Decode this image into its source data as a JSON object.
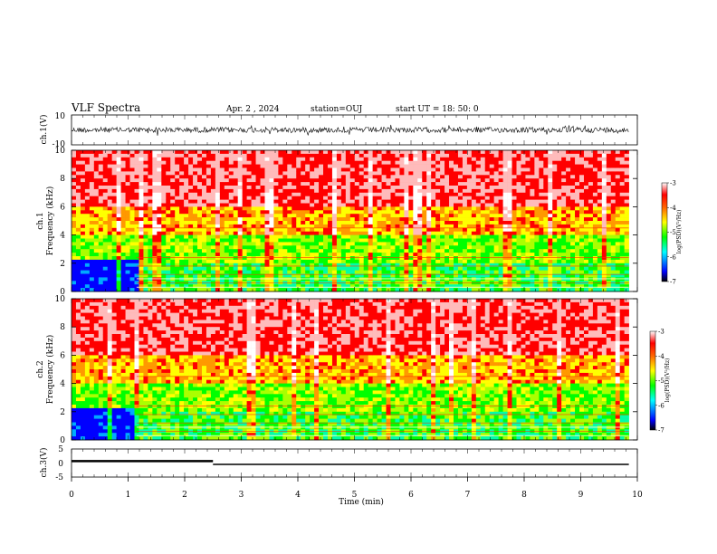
{
  "header": {
    "title": "VLF Spectra",
    "date": "Apr. 2 , 2024",
    "station": "station=OUJ",
    "start": "start UT = 18: 50: 0"
  },
  "chart_data": {
    "type": "heatmap",
    "title": "VLF Spectra",
    "xlabel": "Time (min)",
    "xlim": [
      0,
      10
    ],
    "x_ticks": [
      "0",
      "1",
      "2",
      "3",
      "4",
      "5",
      "6",
      "7",
      "8",
      "9",
      "10"
    ],
    "panels": [
      {
        "id": "ch1v",
        "ylabel": "ch.1(V)",
        "ylim": [
          -10,
          10
        ],
        "y_ticks": [
          "10",
          "-10"
        ]
      },
      {
        "id": "spec1",
        "ylabel_ch": "ch.1",
        "ylabel": "Frequency (kHz)",
        "ylim": [
          0,
          10
        ],
        "y_ticks": [
          "0",
          "2",
          "4",
          "6",
          "8",
          "10"
        ]
      },
      {
        "id": "spec2",
        "ylabel_ch": "ch.2",
        "ylabel": "Frequency (kHz)",
        "ylim": [
          0,
          10
        ],
        "y_ticks": [
          "0",
          "2",
          "4",
          "6",
          "8",
          "10"
        ]
      },
      {
        "id": "ch3v",
        "ylabel": "ch.3(V)",
        "ylim": [
          -5,
          5
        ],
        "y_ticks": [
          "5",
          "0",
          "-5"
        ],
        "levels": [
          {
            "x": [
              0,
              2.5
            ],
            "y": 0.2
          },
          {
            "x": [
              2.5,
              9.85
            ],
            "y": 0
          }
        ]
      }
    ],
    "colorbar": {
      "label": "log(PSD)(V²/Hz)",
      "range": [
        -7,
        -3
      ],
      "ticks": [
        "-3",
        "-4",
        "-5",
        "-6",
        "-7"
      ]
    }
  },
  "colors": {
    "cmap": [
      "#000066",
      "#0000ff",
      "#00aaff",
      "#00ffaa",
      "#00ff00",
      "#aaff00",
      "#ffff00",
      "#ff9900",
      "#ff0000",
      "#ffbbbb",
      "#ffffff"
    ]
  }
}
